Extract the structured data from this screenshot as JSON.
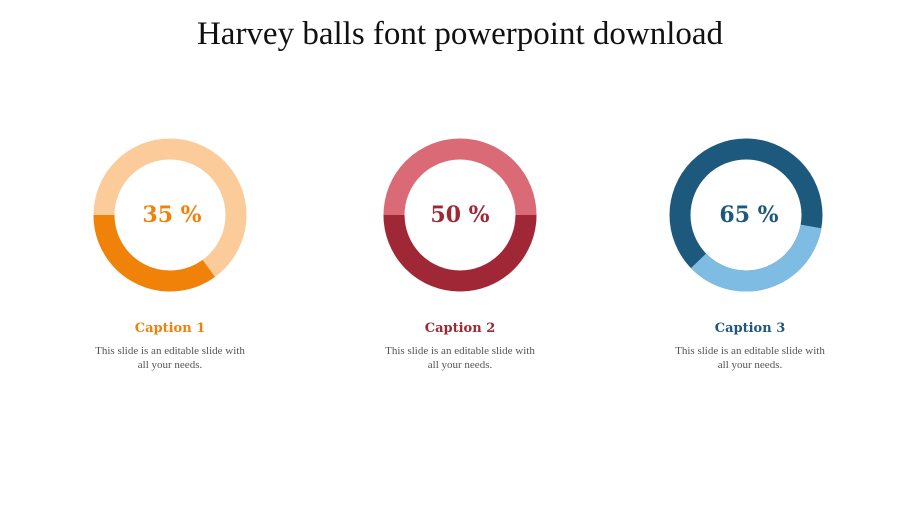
{
  "title": "Harvey balls font powerpoint download",
  "chart_data": {
    "type": "pie",
    "items": [
      {
        "value": 35,
        "label": "35 %",
        "caption": "Caption 1",
        "text_line1": "This slide is an editable slide with",
        "text_line2": "all your needs.",
        "fill_color": "#F0820A",
        "track_color": "#FBCB9A",
        "text_color": "#F0820A"
      },
      {
        "value": 50,
        "label": "50 %",
        "caption": "Caption 2",
        "text_line1": "This slide is an editable slide with",
        "text_line2": "all your needs.",
        "fill_color": "#A02836",
        "track_color": "#DA6A75",
        "text_color": "#A02836"
      },
      {
        "value": 65,
        "label": "65 %",
        "caption": "Caption 3",
        "text_line1": "This slide is an editable slide with",
        "text_line2": "all your needs.",
        "fill_color": "#1D587D",
        "track_color": "#7FBCE3",
        "text_color": "#1D587D"
      }
    ]
  }
}
